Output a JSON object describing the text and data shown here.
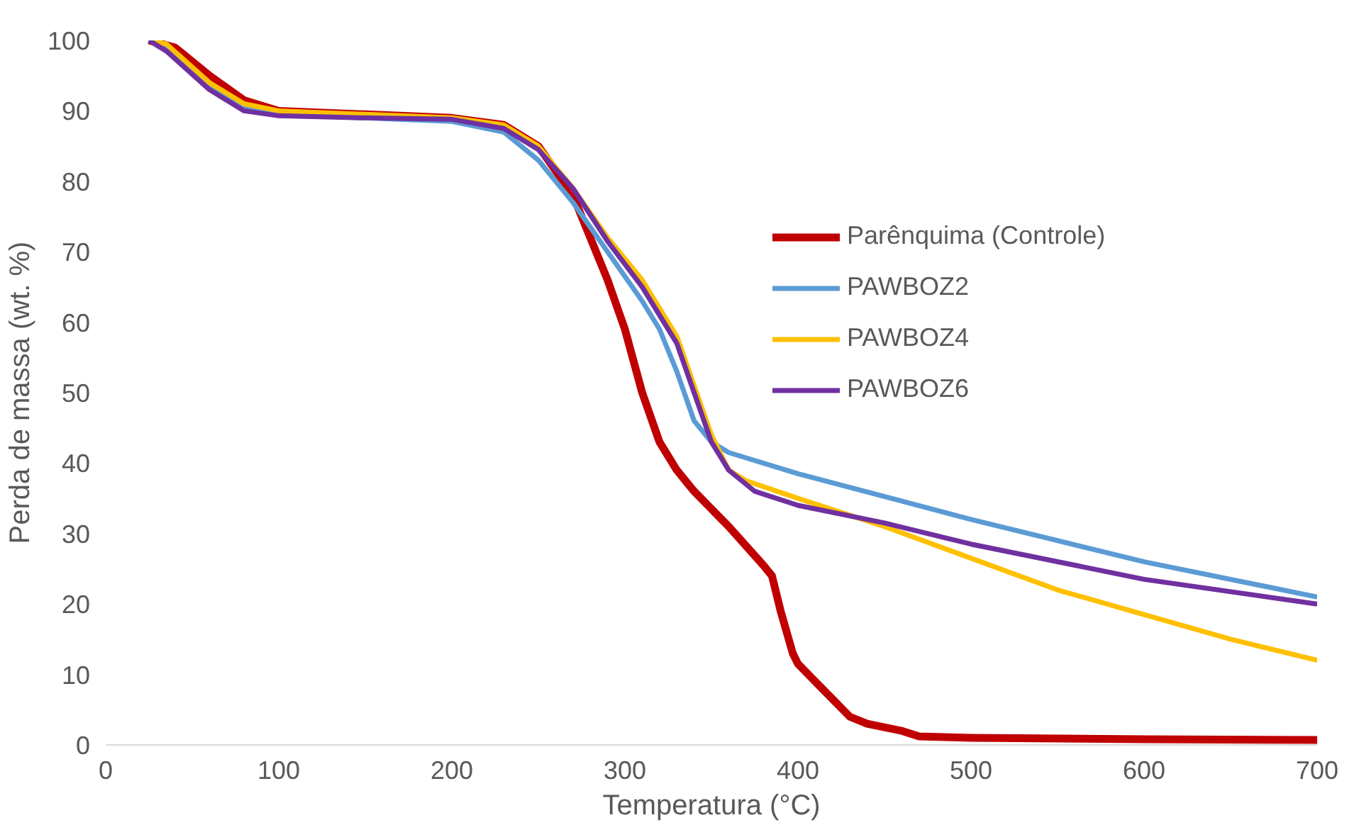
{
  "chart_data": {
    "type": "line",
    "xlabel": "Temperatura (°C)",
    "ylabel": "Perda de massa (wt. %)",
    "xlim": [
      0,
      700
    ],
    "xticks": [
      0,
      100,
      200,
      300,
      400,
      500,
      600,
      700
    ],
    "ylim": [
      0,
      100
    ],
    "yticks": [
      0,
      10,
      20,
      30,
      40,
      50,
      60,
      70,
      80,
      90,
      100
    ],
    "grid": false,
    "legend": "right",
    "line_style": "solid",
    "marker": "none",
    "series": [
      {
        "name": "Parênquima (Controle)",
        "color": "#c00000",
        "x": [
          25,
          40,
          60,
          80,
          100,
          150,
          200,
          230,
          250,
          270,
          290,
          300,
          310,
          320,
          330,
          340,
          360,
          380,
          385,
          390,
          397,
          400,
          410,
          420,
          430,
          440,
          460,
          470,
          500,
          600,
          700
        ],
        "values": [
          100,
          99,
          95,
          91.5,
          90,
          89.5,
          89,
          88,
          85,
          78,
          66,
          59,
          50,
          43,
          39,
          36,
          31,
          25.5,
          24,
          19,
          13,
          11.5,
          9,
          6.5,
          4,
          3,
          2,
          1.2,
          1,
          0.8,
          0.7
        ]
      },
      {
        "name": "PAWBOZ2",
        "color": "#5b9bd5",
        "x": [
          25,
          35,
          60,
          80,
          100,
          150,
          200,
          230,
          250,
          270,
          290,
          310,
          320,
          330,
          340,
          350,
          360,
          400,
          500,
          600,
          700
        ],
        "values": [
          100,
          99,
          93.5,
          90.5,
          89.5,
          89,
          88.5,
          87,
          83,
          77,
          70,
          63,
          59,
          53,
          46,
          43,
          41.5,
          38.5,
          32,
          26,
          21
        ]
      },
      {
        "name": "PAWBOZ4",
        "color": "#ffc000",
        "x": [
          25,
          35,
          60,
          80,
          100,
          150,
          200,
          230,
          250,
          270,
          290,
          310,
          330,
          340,
          350,
          360,
          370,
          400,
          450,
          500,
          550,
          600,
          650,
          700
        ],
        "values": [
          100,
          99.5,
          94,
          91,
          90,
          89.5,
          89,
          88,
          85,
          79,
          72,
          66,
          58,
          51,
          44,
          39,
          37.5,
          35,
          31,
          26.5,
          22,
          18.5,
          15,
          12
        ]
      },
      {
        "name": "PAWBOZ6",
        "color": "#7030a0",
        "x": [
          25,
          35,
          60,
          80,
          100,
          150,
          200,
          230,
          250,
          270,
          290,
          310,
          330,
          340,
          350,
          360,
          375,
          400,
          450,
          500,
          600,
          700
        ],
        "values": [
          100,
          98.5,
          93,
          90,
          89.3,
          89,
          88.8,
          87.5,
          84.5,
          79,
          71.5,
          65,
          57,
          50,
          43,
          39,
          36,
          34,
          31.5,
          28.5,
          23.5,
          20
        ]
      }
    ]
  }
}
